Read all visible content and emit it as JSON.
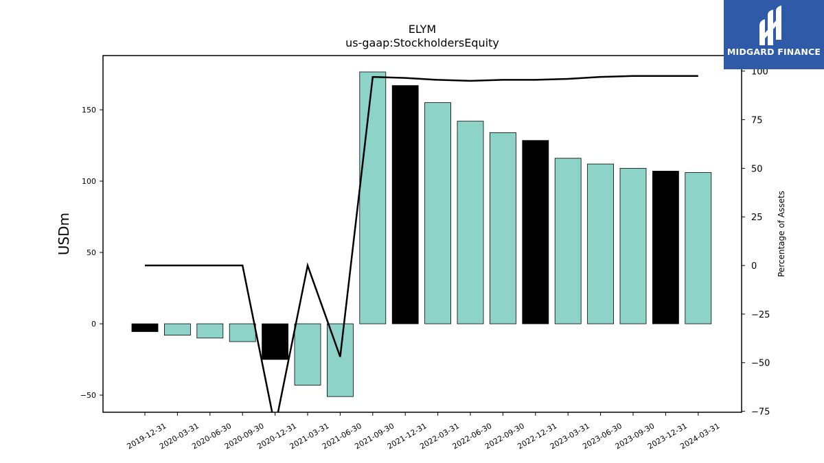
{
  "chart_data": {
    "type": "bar",
    "title": "ELYM",
    "subtitle": "us-gaap:StockholdersEquity",
    "ylabel": "USDm",
    "y2label": "Percentage of Assets",
    "ylim": [
      -62,
      188
    ],
    "y2lim": [
      -75.5,
      108
    ],
    "yticks": [
      -50,
      0,
      50,
      100,
      150
    ],
    "y2ticks": [
      -75,
      -50,
      -25,
      0,
      25,
      50,
      75,
      100
    ],
    "categories": [
      "2019-12-31",
      "2020-03-31",
      "2020-06-30",
      "2020-09-30",
      "2020-12-31",
      "2021-03-31",
      "2021-06-30",
      "2021-09-30",
      "2021-12-31",
      "2022-03-31",
      "2022-06-30",
      "2022-09-30",
      "2022-12-31",
      "2023-03-31",
      "2023-06-30",
      "2023-09-30",
      "2023-12-31",
      "2024-03-31"
    ],
    "values": [
      -5.5,
      -8,
      -10,
      -12.5,
      -25,
      -43,
      -51,
      176.5,
      167,
      155,
      142,
      134,
      128.5,
      116,
      112,
      109,
      107,
      106
    ],
    "highlight": [
      true,
      false,
      false,
      false,
      true,
      false,
      false,
      false,
      true,
      false,
      false,
      false,
      true,
      false,
      false,
      false,
      true,
      false
    ],
    "line_values": [
      0,
      0,
      0,
      0,
      -83,
      0,
      -47,
      97,
      96.5,
      95.5,
      95,
      95.5,
      95.5,
      96,
      97,
      97.5,
      97.5,
      97.5
    ],
    "colors": {
      "bar": "#8dd3c7",
      "highlight": "#000000",
      "line": "#000000"
    }
  },
  "logo": {
    "text": "MIDGARD FINANCE"
  }
}
